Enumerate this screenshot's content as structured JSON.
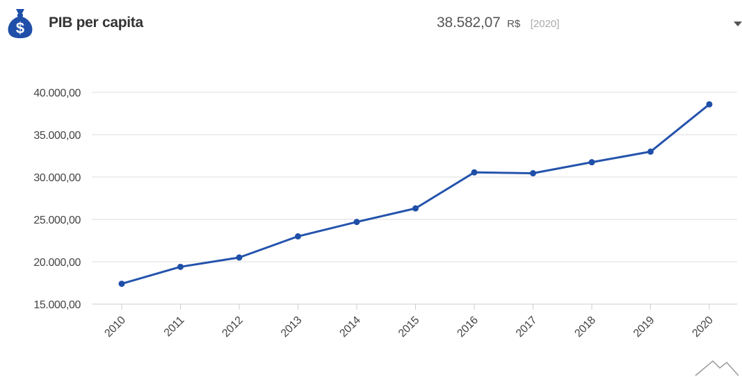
{
  "header": {
    "icon": "money-bag-icon",
    "title": "PIB per capita",
    "value": "38.582,07",
    "unit": "R$",
    "year": "[2020]",
    "dropdown_icon": "caret-down-icon"
  },
  "colors": {
    "accent": "#1f4fa8",
    "line": "#2453ac",
    "grid": "#dddddd",
    "text": "#444444"
  },
  "chart_data": {
    "type": "line",
    "x": [
      "2010",
      "2011",
      "2012",
      "2013",
      "2014",
      "2015",
      "2016",
      "2017",
      "2018",
      "2019",
      "2020"
    ],
    "series": [
      {
        "values": [
          17400,
          19400,
          20500,
          23000,
          24700,
          26300,
          30550,
          30450,
          31750,
          33000,
          38582.07
        ]
      }
    ],
    "y_ticks": [
      "15.000,00",
      "20.000,00",
      "25.000,00",
      "30.000,00",
      "35.000,00",
      "40.000,00"
    ],
    "ylim": [
      15000,
      40000
    ],
    "grid": true,
    "legend": "none"
  }
}
